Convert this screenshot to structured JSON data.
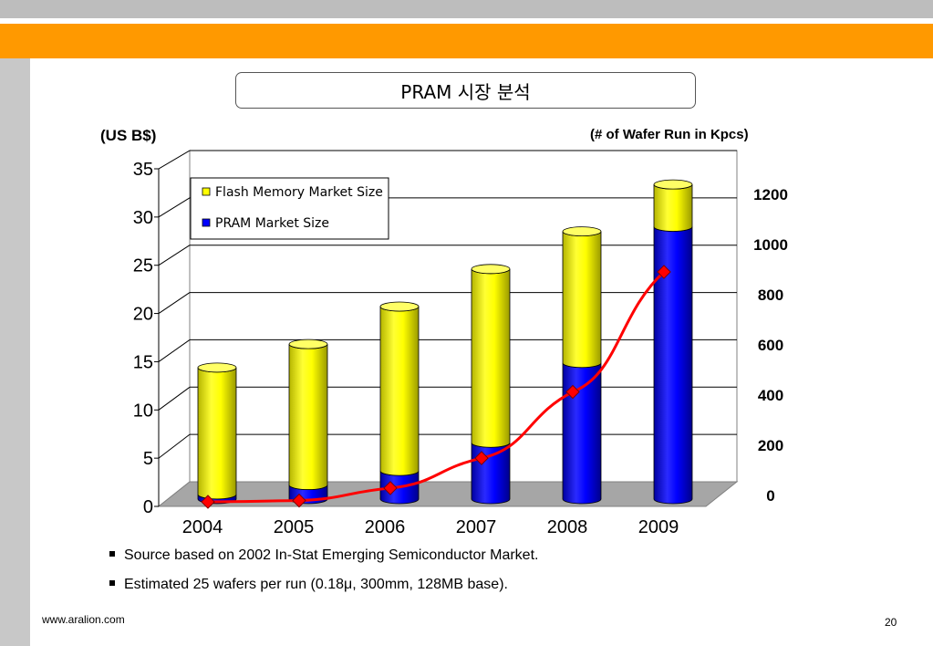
{
  "slide": {
    "title": "PRAM 시장 분석",
    "left_axis_unit": "(US B$)",
    "right_axis_unit": "(# of Wafer Run in Kpcs)",
    "bullets": [
      "Source based on 2002 In-Stat Emerging Semiconductor Market.",
      "Estimated 25 wafers per run (0.18μ, 300mm, 128MB base)."
    ],
    "footer_url": "www.aralion.com",
    "page_number": "20"
  },
  "colors": {
    "header_orange": "#ff9900",
    "flash_yellow": "#ffff00",
    "pram_blue": "#0000ff",
    "line_red": "#ff0000"
  },
  "chart_data": {
    "type": "bar",
    "stacked": true,
    "three_d": true,
    "categories": [
      "2004",
      "2005",
      "2006",
      "2007",
      "2008",
      "2009"
    ],
    "series": [
      {
        "name": "PRAM Market Size",
        "color": "#0000ff",
        "values": [
          0.5,
          1.5,
          3,
          6,
          14.5,
          29
        ]
      },
      {
        "name": "Flash Memory Market Size",
        "color": "#ffff00",
        "values": [
          13.5,
          15,
          17.5,
          18.5,
          14,
          4.5
        ]
      }
    ],
    "line_series": {
      "axis": "right",
      "color": "#ff0000",
      "values": [
        0,
        5,
        55,
        175,
        440,
        920
      ]
    },
    "left_axis": {
      "ylim": [
        0,
        35
      ],
      "ticks": [
        "0",
        "5",
        "10",
        "15",
        "20",
        "25",
        "30",
        "35"
      ]
    },
    "right_axis": {
      "ylim": [
        0,
        1200
      ],
      "ticks": [
        "0",
        "200",
        "400",
        "600",
        "800",
        "1000",
        "1200"
      ]
    },
    "legend": [
      "Flash Memory Market Size",
      "PRAM Market Size"
    ],
    "legend_position": "top-left",
    "grid": true
  }
}
